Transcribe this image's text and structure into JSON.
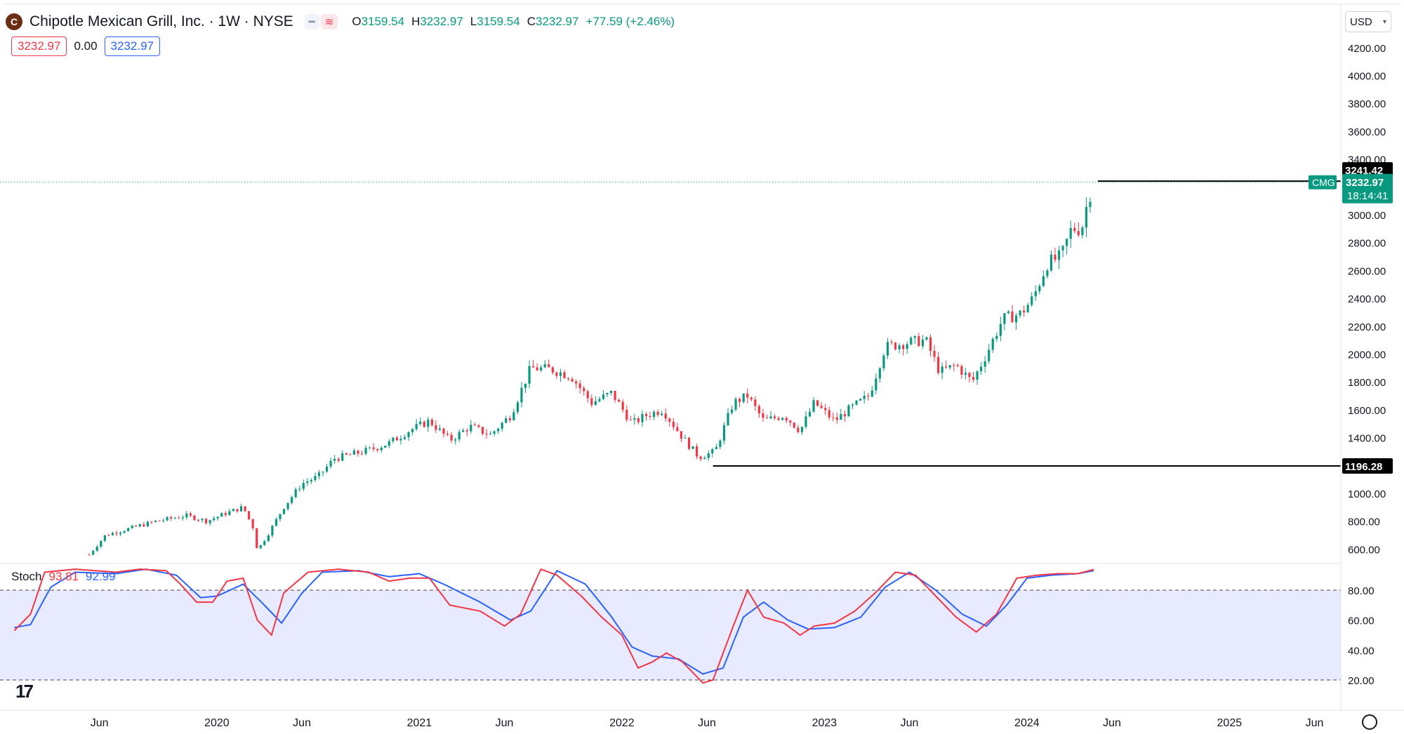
{
  "header": {
    "title": "Chipotle Mexican Grill, Inc. · 1W · NYSE",
    "logo_letter": "C",
    "ohlc": [
      {
        "k": "O",
        "v": "3159.54"
      },
      {
        "k": "H",
        "v": "3232.97"
      },
      {
        "k": "L",
        "v": "3159.54"
      },
      {
        "k": "C",
        "v": "3232.97"
      },
      {
        "k": "",
        "v": "+77.59 (+2.46%)"
      }
    ],
    "pill_icons": [
      "minus-icon",
      "wave-icon"
    ],
    "bid": "3232.97",
    "spread": "0.00",
    "ask": "3232.97",
    "currency": "USD"
  },
  "colors": {
    "up": "#089981",
    "down": "#f23645",
    "stoch_k": "#f23645",
    "stoch_d": "#2962ff",
    "band": "#e8eaff"
  },
  "price_labels": {
    "high_line": "3241.42",
    "low_line": "1196.28",
    "current": "3232.97",
    "ticker": "CMG",
    "countdown": "18:14:41"
  },
  "stoch": {
    "name": "Stoch",
    "k_value": "93.81",
    "d_value": "92.99",
    "upper": 80,
    "lower": 20
  },
  "chart_data": [
    {
      "type": "candlestick",
      "title": "Chipotle Mexican Grill, Inc. · 1W · NYSE",
      "x_ticks": [
        "Jun",
        "2020",
        "Jun",
        "2021",
        "Jun",
        "2022",
        "Jun",
        "2023",
        "Jun",
        "2024",
        "Jun",
        "2025",
        "Jun"
      ],
      "y_ticks": [
        "600.00",
        "800.00",
        "1000.00",
        "1200.00",
        "1400.00",
        "1600.00",
        "1800.00",
        "2000.00",
        "2200.00",
        "2400.00",
        "2600.00",
        "2800.00",
        "3000.00",
        "3200.00",
        "3400.00",
        "3600.00",
        "3800.00",
        "4000.00",
        "4200.00"
      ],
      "ylim": [
        550,
        4300
      ],
      "horizontal_lines": [
        3241.42,
        1196.28
      ],
      "close_series": [
        {
          "t": 2019.37,
          "c": 560
        },
        {
          "t": 2019.45,
          "c": 700
        },
        {
          "t": 2019.55,
          "c": 740
        },
        {
          "t": 2019.7,
          "c": 800
        },
        {
          "t": 2019.85,
          "c": 840
        },
        {
          "t": 2019.95,
          "c": 800
        },
        {
          "t": 2020.05,
          "c": 860
        },
        {
          "t": 2020.13,
          "c": 900
        },
        {
          "t": 2020.18,
          "c": 750
        },
        {
          "t": 2020.2,
          "c": 590
        },
        {
          "t": 2020.25,
          "c": 700
        },
        {
          "t": 2020.33,
          "c": 900
        },
        {
          "t": 2020.42,
          "c": 1070
        },
        {
          "t": 2020.5,
          "c": 1120
        },
        {
          "t": 2020.58,
          "c": 1250
        },
        {
          "t": 2020.67,
          "c": 1280
        },
        {
          "t": 2020.75,
          "c": 1310
        },
        {
          "t": 2020.85,
          "c": 1360
        },
        {
          "t": 2020.95,
          "c": 1450
        },
        {
          "t": 2021.05,
          "c": 1520
        },
        {
          "t": 2021.15,
          "c": 1380
        },
        {
          "t": 2021.25,
          "c": 1480
        },
        {
          "t": 2021.35,
          "c": 1420
        },
        {
          "t": 2021.45,
          "c": 1560
        },
        {
          "t": 2021.55,
          "c": 1900
        },
        {
          "t": 2021.65,
          "c": 1890
        },
        {
          "t": 2021.75,
          "c": 1840
        },
        {
          "t": 2021.85,
          "c": 1650
        },
        {
          "t": 2021.95,
          "c": 1720
        },
        {
          "t": 2022.05,
          "c": 1500
        },
        {
          "t": 2022.12,
          "c": 1560
        },
        {
          "t": 2022.2,
          "c": 1600
        },
        {
          "t": 2022.3,
          "c": 1400
        },
        {
          "t": 2022.38,
          "c": 1260
        },
        {
          "t": 2022.46,
          "c": 1300
        },
        {
          "t": 2022.55,
          "c": 1650
        },
        {
          "t": 2022.62,
          "c": 1700
        },
        {
          "t": 2022.7,
          "c": 1520
        },
        {
          "t": 2022.8,
          "c": 1560
        },
        {
          "t": 2022.88,
          "c": 1450
        },
        {
          "t": 2022.95,
          "c": 1650
        },
        {
          "t": 2023.05,
          "c": 1520
        },
        {
          "t": 2023.12,
          "c": 1600
        },
        {
          "t": 2023.22,
          "c": 1700
        },
        {
          "t": 2023.3,
          "c": 2050
        },
        {
          "t": 2023.4,
          "c": 2080
        },
        {
          "t": 2023.5,
          "c": 2100
        },
        {
          "t": 2023.57,
          "c": 1870
        },
        {
          "t": 2023.65,
          "c": 1920
        },
        {
          "t": 2023.73,
          "c": 1800
        },
        {
          "t": 2023.8,
          "c": 2000
        },
        {
          "t": 2023.88,
          "c": 2250
        },
        {
          "t": 2023.97,
          "c": 2290
        },
        {
          "t": 2024.03,
          "c": 2400
        },
        {
          "t": 2024.1,
          "c": 2650
        },
        {
          "t": 2024.17,
          "c": 2700
        },
        {
          "t": 2024.22,
          "c": 2900
        },
        {
          "t": 2024.27,
          "c": 2900
        },
        {
          "t": 2024.3,
          "c": 3100
        },
        {
          "t": 2024.33,
          "c": 3232.97
        }
      ]
    },
    {
      "type": "line",
      "title": "Stoch",
      "y_ticks": [
        "20.00",
        "40.00",
        "60.00",
        "80.00"
      ],
      "ylim": [
        0,
        100
      ],
      "series": [
        {
          "name": "%K",
          "points": [
            {
              "t": 2019.0,
              "v": 53
            },
            {
              "t": 2019.08,
              "v": 64
            },
            {
              "t": 2019.15,
              "v": 92
            },
            {
              "t": 2019.3,
              "v": 94
            },
            {
              "t": 2019.5,
              "v": 92
            },
            {
              "t": 2019.62,
              "v": 94
            },
            {
              "t": 2019.75,
              "v": 93
            },
            {
              "t": 2019.82,
              "v": 84
            },
            {
              "t": 2019.9,
              "v": 72
            },
            {
              "t": 2019.98,
              "v": 72
            },
            {
              "t": 2020.05,
              "v": 86
            },
            {
              "t": 2020.13,
              "v": 88
            },
            {
              "t": 2020.2,
              "v": 60
            },
            {
              "t": 2020.27,
              "v": 50
            },
            {
              "t": 2020.33,
              "v": 78
            },
            {
              "t": 2020.45,
              "v": 92
            },
            {
              "t": 2020.6,
              "v": 94
            },
            {
              "t": 2020.75,
              "v": 92
            },
            {
              "t": 2020.85,
              "v": 86
            },
            {
              "t": 2020.95,
              "v": 88
            },
            {
              "t": 2021.05,
              "v": 88
            },
            {
              "t": 2021.15,
              "v": 70
            },
            {
              "t": 2021.3,
              "v": 66
            },
            {
              "t": 2021.42,
              "v": 56
            },
            {
              "t": 2021.5,
              "v": 64
            },
            {
              "t": 2021.6,
              "v": 94
            },
            {
              "t": 2021.68,
              "v": 90
            },
            {
              "t": 2021.8,
              "v": 76
            },
            {
              "t": 2021.9,
              "v": 62
            },
            {
              "t": 2022.0,
              "v": 50
            },
            {
              "t": 2022.08,
              "v": 28
            },
            {
              "t": 2022.15,
              "v": 32
            },
            {
              "t": 2022.22,
              "v": 38
            },
            {
              "t": 2022.3,
              "v": 32
            },
            {
              "t": 2022.4,
              "v": 18
            },
            {
              "t": 2022.45,
              "v": 20
            },
            {
              "t": 2022.55,
              "v": 56
            },
            {
              "t": 2022.62,
              "v": 80
            },
            {
              "t": 2022.7,
              "v": 62
            },
            {
              "t": 2022.8,
              "v": 58
            },
            {
              "t": 2022.88,
              "v": 50
            },
            {
              "t": 2022.95,
              "v": 56
            },
            {
              "t": 2023.05,
              "v": 58
            },
            {
              "t": 2023.15,
              "v": 66
            },
            {
              "t": 2023.25,
              "v": 78
            },
            {
              "t": 2023.35,
              "v": 92
            },
            {
              "t": 2023.45,
              "v": 90
            },
            {
              "t": 2023.55,
              "v": 76
            },
            {
              "t": 2023.65,
              "v": 62
            },
            {
              "t": 2023.75,
              "v": 52
            },
            {
              "t": 2023.85,
              "v": 64
            },
            {
              "t": 2023.95,
              "v": 88
            },
            {
              "t": 2024.05,
              "v": 90
            },
            {
              "t": 2024.15,
              "v": 91
            },
            {
              "t": 2024.25,
              "v": 91
            },
            {
              "t": 2024.33,
              "v": 93.81
            }
          ]
        },
        {
          "name": "%D",
          "points": [
            {
              "t": 2019.0,
              "v": 55
            },
            {
              "t": 2019.08,
              "v": 57
            },
            {
              "t": 2019.18,
              "v": 82
            },
            {
              "t": 2019.3,
              "v": 92
            },
            {
              "t": 2019.5,
              "v": 91
            },
            {
              "t": 2019.65,
              "v": 94
            },
            {
              "t": 2019.8,
              "v": 90
            },
            {
              "t": 2019.92,
              "v": 75
            },
            {
              "t": 2020.0,
              "v": 76
            },
            {
              "t": 2020.13,
              "v": 84
            },
            {
              "t": 2020.22,
              "v": 72
            },
            {
              "t": 2020.32,
              "v": 58
            },
            {
              "t": 2020.42,
              "v": 78
            },
            {
              "t": 2020.52,
              "v": 92
            },
            {
              "t": 2020.7,
              "v": 93
            },
            {
              "t": 2020.85,
              "v": 89
            },
            {
              "t": 2021.0,
              "v": 91
            },
            {
              "t": 2021.12,
              "v": 84
            },
            {
              "t": 2021.3,
              "v": 72
            },
            {
              "t": 2021.45,
              "v": 60
            },
            {
              "t": 2021.55,
              "v": 66
            },
            {
              "t": 2021.68,
              "v": 93
            },
            {
              "t": 2021.82,
              "v": 84
            },
            {
              "t": 2021.95,
              "v": 62
            },
            {
              "t": 2022.05,
              "v": 42
            },
            {
              "t": 2022.15,
              "v": 36
            },
            {
              "t": 2022.28,
              "v": 34
            },
            {
              "t": 2022.4,
              "v": 24
            },
            {
              "t": 2022.5,
              "v": 28
            },
            {
              "t": 2022.6,
              "v": 62
            },
            {
              "t": 2022.7,
              "v": 72
            },
            {
              "t": 2022.82,
              "v": 60
            },
            {
              "t": 2022.92,
              "v": 54
            },
            {
              "t": 2023.05,
              "v": 55
            },
            {
              "t": 2023.18,
              "v": 62
            },
            {
              "t": 2023.3,
              "v": 82
            },
            {
              "t": 2023.42,
              "v": 92
            },
            {
              "t": 2023.55,
              "v": 80
            },
            {
              "t": 2023.68,
              "v": 64
            },
            {
              "t": 2023.8,
              "v": 56
            },
            {
              "t": 2023.9,
              "v": 70
            },
            {
              "t": 2024.0,
              "v": 88
            },
            {
              "t": 2024.12,
              "v": 90
            },
            {
              "t": 2024.25,
              "v": 91
            },
            {
              "t": 2024.33,
              "v": 92.99
            }
          ]
        }
      ]
    }
  ]
}
